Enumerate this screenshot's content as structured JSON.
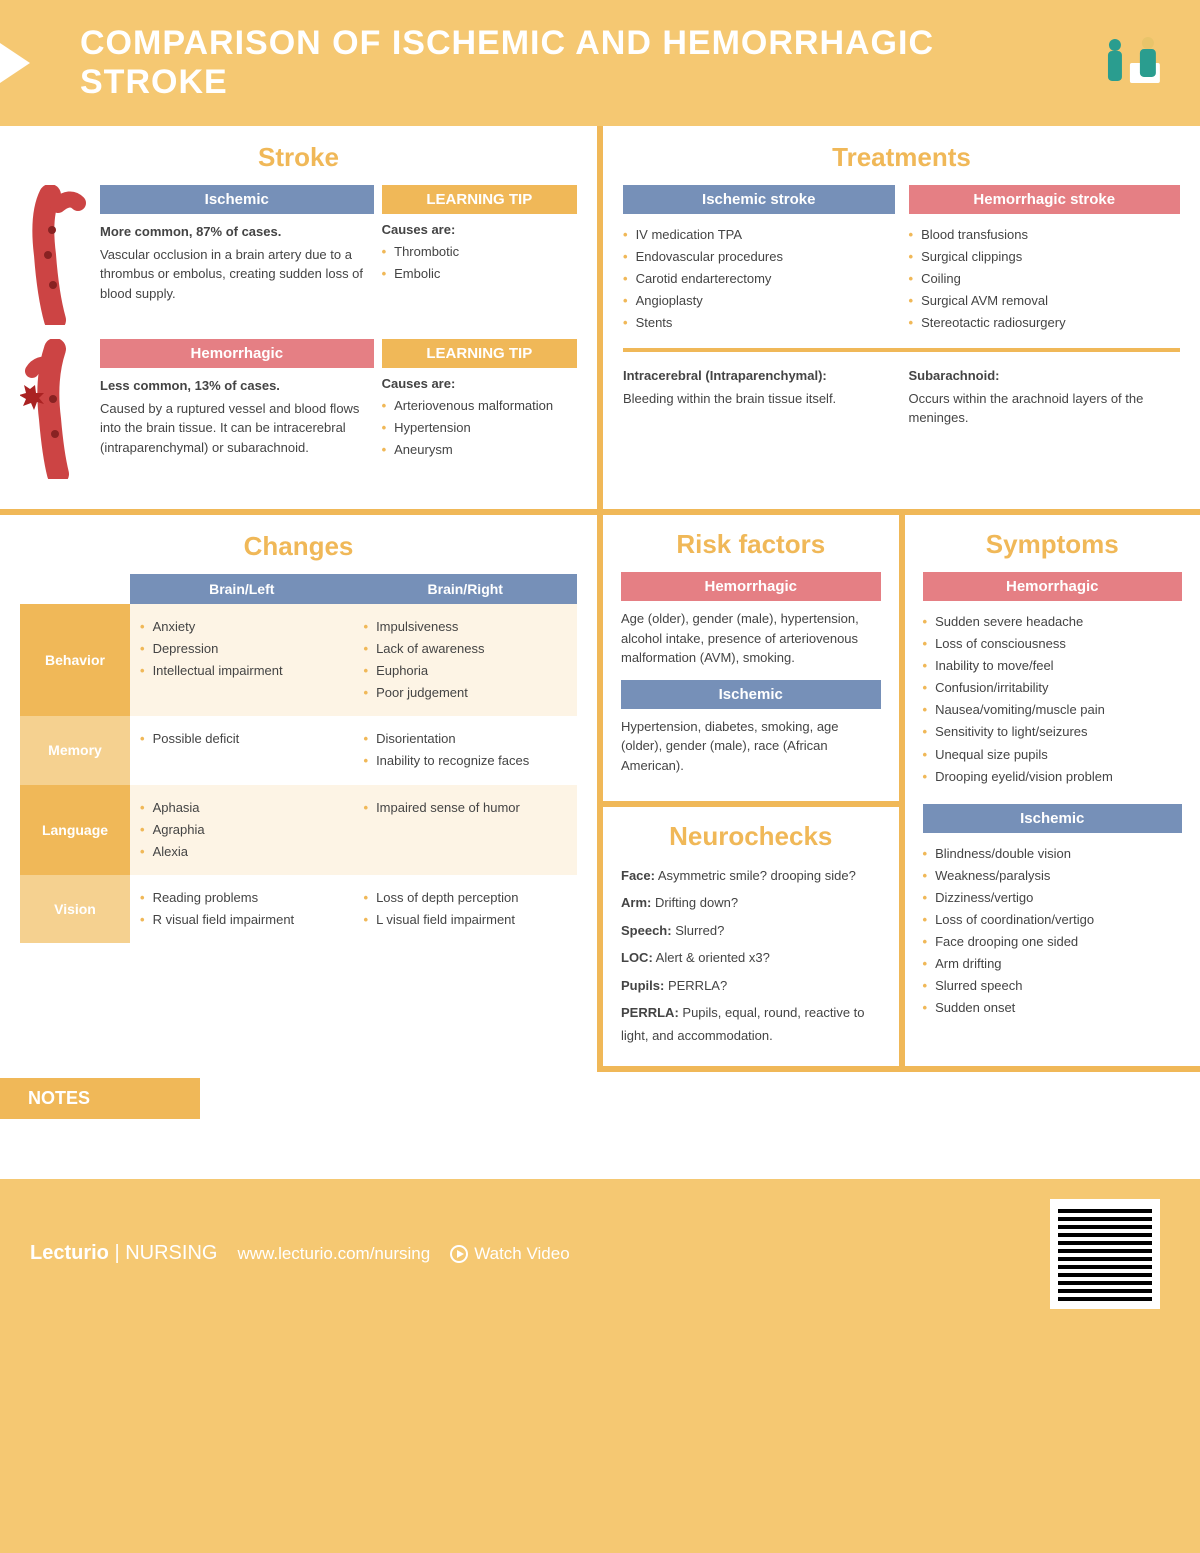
{
  "colors": {
    "accent": "#f0b858",
    "blue": "#7690b8",
    "red": "#e57f84",
    "bg": "#f5c872"
  },
  "header": {
    "title": "COMPARISON OF ISCHEMIC AND HEMORRHAGIC STROKE"
  },
  "stroke": {
    "title": "Stroke",
    "ischemic": {
      "label": "Ischemic",
      "bold": "More common, 87% of cases.",
      "text": "Vascular occlusion in a brain artery due to a thrombus or embolus, creating sudden loss of blood supply.",
      "tip_label": "LEARNING TIP",
      "tip_head": "Causes are:",
      "tip_items": [
        "Thrombotic",
        "Embolic"
      ]
    },
    "hemorrhagic": {
      "label": "Hemorrhagic",
      "bold": "Less common, 13% of cases.",
      "text": "Caused by a ruptured vessel and blood flows into the brain tissue. It can be intracerebral (intraparenchymal) or subarachnoid.",
      "tip_label": "LEARNING TIP",
      "tip_head": "Causes are:",
      "tip_items": [
        "Arteriovenous malformation",
        "Hypertension",
        "Aneurysm"
      ]
    }
  },
  "treatments": {
    "title": "Treatments",
    "ischemic": {
      "label": "Ischemic stroke",
      "items": [
        "IV medication TPA",
        "Endovascular procedures",
        "Carotid endarterectomy",
        "Angioplasty",
        "Stents"
      ]
    },
    "hemorrhagic": {
      "label": "Hemorrhagic stroke",
      "items": [
        "Blood transfusions",
        "Surgical clippings",
        "Coiling",
        "Surgical AVM removal",
        "Stereotactic radiosurgery"
      ]
    },
    "defs": {
      "intra": {
        "label": "Intracerebral (Intraparenchymal):",
        "text": "Bleeding within the brain tissue itself."
      },
      "sub": {
        "label": "Subarachnoid:",
        "text": "Occurs within the arachnoid layers of the meninges."
      }
    }
  },
  "changes": {
    "title": "Changes",
    "col_left": "Brain/Left",
    "col_right": "Brain/Right",
    "rows": [
      {
        "label": "Behavior",
        "left": [
          "Anxiety",
          "Depression",
          "Intellectual impairment"
        ],
        "right": [
          "Impulsiveness",
          "Lack of awareness",
          "Euphoria",
          "Poor judgement"
        ]
      },
      {
        "label": "Memory",
        "left": [
          "Possible deficit"
        ],
        "right": [
          "Disorientation",
          "Inability to recognize faces"
        ]
      },
      {
        "label": "Language",
        "left": [
          "Aphasia",
          "Agraphia",
          "Alexia"
        ],
        "right": [
          "Impaired sense of humor"
        ]
      },
      {
        "label": "Vision",
        "left": [
          "Reading problems",
          "R visual field impairment"
        ],
        "right": [
          "Loss of depth perception",
          "L visual field impairment"
        ]
      }
    ]
  },
  "risk": {
    "title": "Risk factors",
    "hem": {
      "label": "Hemorrhagic",
      "text": "Age (older), gender (male), hypertension, alcohol intake, presence of arteriovenous malformation (AVM), smoking."
    },
    "isch": {
      "label": "Ischemic",
      "text": "Hypertension, diabetes, smoking, age (older), gender (male), race (African American)."
    }
  },
  "neuro": {
    "title": "Neurochecks",
    "items": [
      {
        "k": "Face:",
        "v": "Asymmetric smile? drooping side?"
      },
      {
        "k": "Arm:",
        "v": "Drifting down?"
      },
      {
        "k": "Speech:",
        "v": "Slurred?"
      },
      {
        "k": "LOC:",
        "v": "Alert & oriented x3?"
      },
      {
        "k": "Pupils:",
        "v": "PERRLA?"
      },
      {
        "k": "PERRLA:",
        "v": "Pupils, equal, round, reactive to light, and accommodation."
      }
    ]
  },
  "symptoms": {
    "title": "Symptoms",
    "hem": {
      "label": "Hemorrhagic",
      "items": [
        "Sudden severe headache",
        "Loss of consciousness",
        "Inability to move/feel",
        "Confusion/irritability",
        "Nausea/vomiting/muscle pain",
        "Sensitivity to light/seizures",
        "Unequal size pupils",
        "Drooping eyelid/vision problem"
      ]
    },
    "isch": {
      "label": "Ischemic",
      "items": [
        "Blindness/double vision",
        "Weakness/paralysis",
        "Dizziness/vertigo",
        "Loss of coordination/vertigo",
        "Face drooping one sided",
        "Arm drifting",
        "Slurred speech",
        "Sudden onset"
      ]
    }
  },
  "notes": "NOTES",
  "footer": {
    "brand": "Lecturio",
    "sub": "| NURSING",
    "url": "www.lecturio.com/nursing",
    "watch": "Watch Video"
  }
}
